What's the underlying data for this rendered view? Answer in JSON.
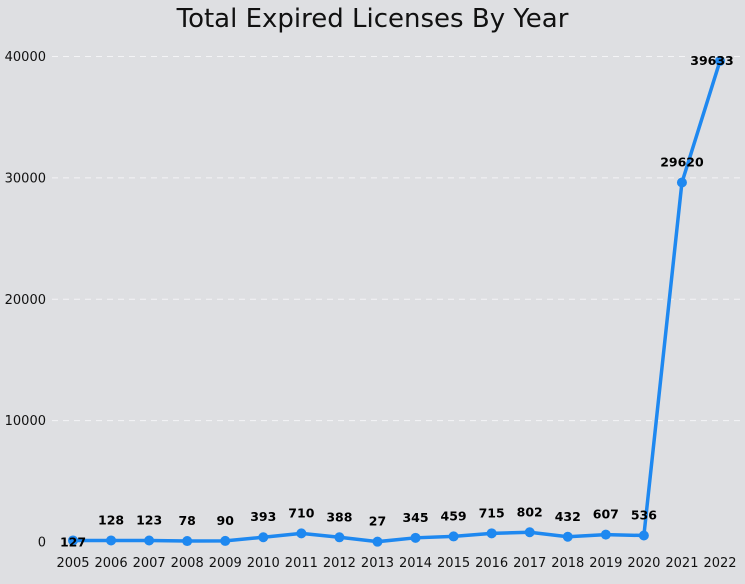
{
  "chart_data": {
    "type": "line",
    "title": "Total Expired Licenses By Year",
    "xlabel": "",
    "ylabel": "",
    "categories": [
      "2005",
      "2006",
      "2007",
      "2008",
      "2009",
      "2010",
      "2011",
      "2012",
      "2013",
      "2014",
      "2015",
      "2016",
      "2017",
      "2018",
      "2019",
      "2020",
      "2021",
      "2022"
    ],
    "series": [
      {
        "values": [
          127,
          128,
          123,
          78,
          90,
          393,
          710,
          388,
          27,
          345,
          459,
          715,
          802,
          432,
          607,
          536,
          29620,
          39633
        ]
      }
    ],
    "y_ticks": [
      0,
      10000,
      20000,
      30000,
      40000
    ],
    "ylim": [
      0,
      40000
    ],
    "grid": "horizontal-dashed",
    "legend": "none",
    "colors": {
      "line": "#1e88f0",
      "background": "#dedfe2",
      "grid": "#f4f4f6"
    }
  }
}
